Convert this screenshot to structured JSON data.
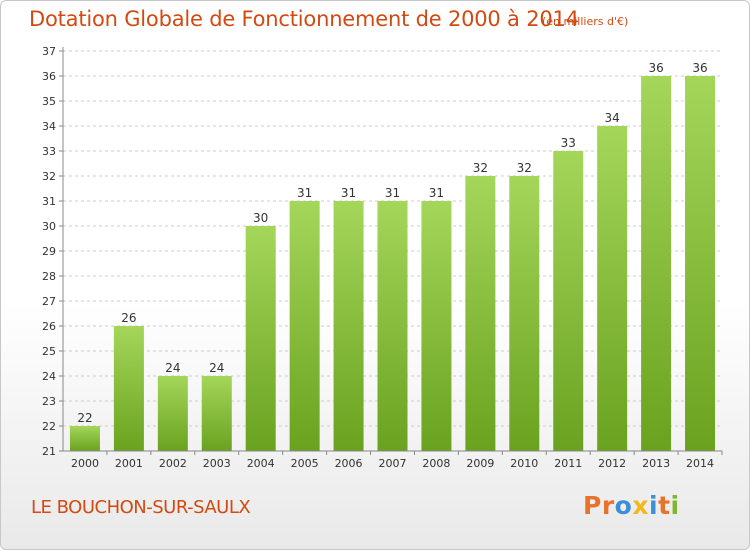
{
  "header": {
    "title": "Dotation Globale de Fonctionnement de 2000 à 2014",
    "subtitle": "(en milliers d'€)"
  },
  "footer": {
    "commune": "LE BOUCHON-SUR-SAULX",
    "logo_text": "Proxiti",
    "logo_colors": [
      "#e8722a",
      "#e8722a",
      "#3b8fd6",
      "#f2b81c",
      "#3b8fd6",
      "#e8722a",
      "#7cb82f"
    ]
  },
  "chart_data": {
    "type": "bar",
    "title": "Dotation Globale de Fonctionnement de 2000 à 2014",
    "subtitle": "(en milliers d'€)",
    "categories": [
      "2000",
      "2001",
      "2002",
      "2003",
      "2004",
      "2005",
      "2006",
      "2007",
      "2008",
      "2009",
      "2010",
      "2011",
      "2012",
      "2013",
      "2014"
    ],
    "values": [
      22,
      26,
      24,
      24,
      30,
      31,
      31,
      31,
      31,
      32,
      32,
      33,
      34,
      36,
      36
    ],
    "ylim": [
      21,
      37
    ],
    "yticks": [
      21,
      22,
      23,
      24,
      25,
      26,
      27,
      28,
      29,
      30,
      31,
      32,
      33,
      34,
      35,
      36,
      37
    ],
    "grid": true,
    "colors": {
      "bar_top": "#a4d65a",
      "bar_bottom": "#6aa21f",
      "grid": "#cccccc",
      "axis": "#888888"
    }
  }
}
